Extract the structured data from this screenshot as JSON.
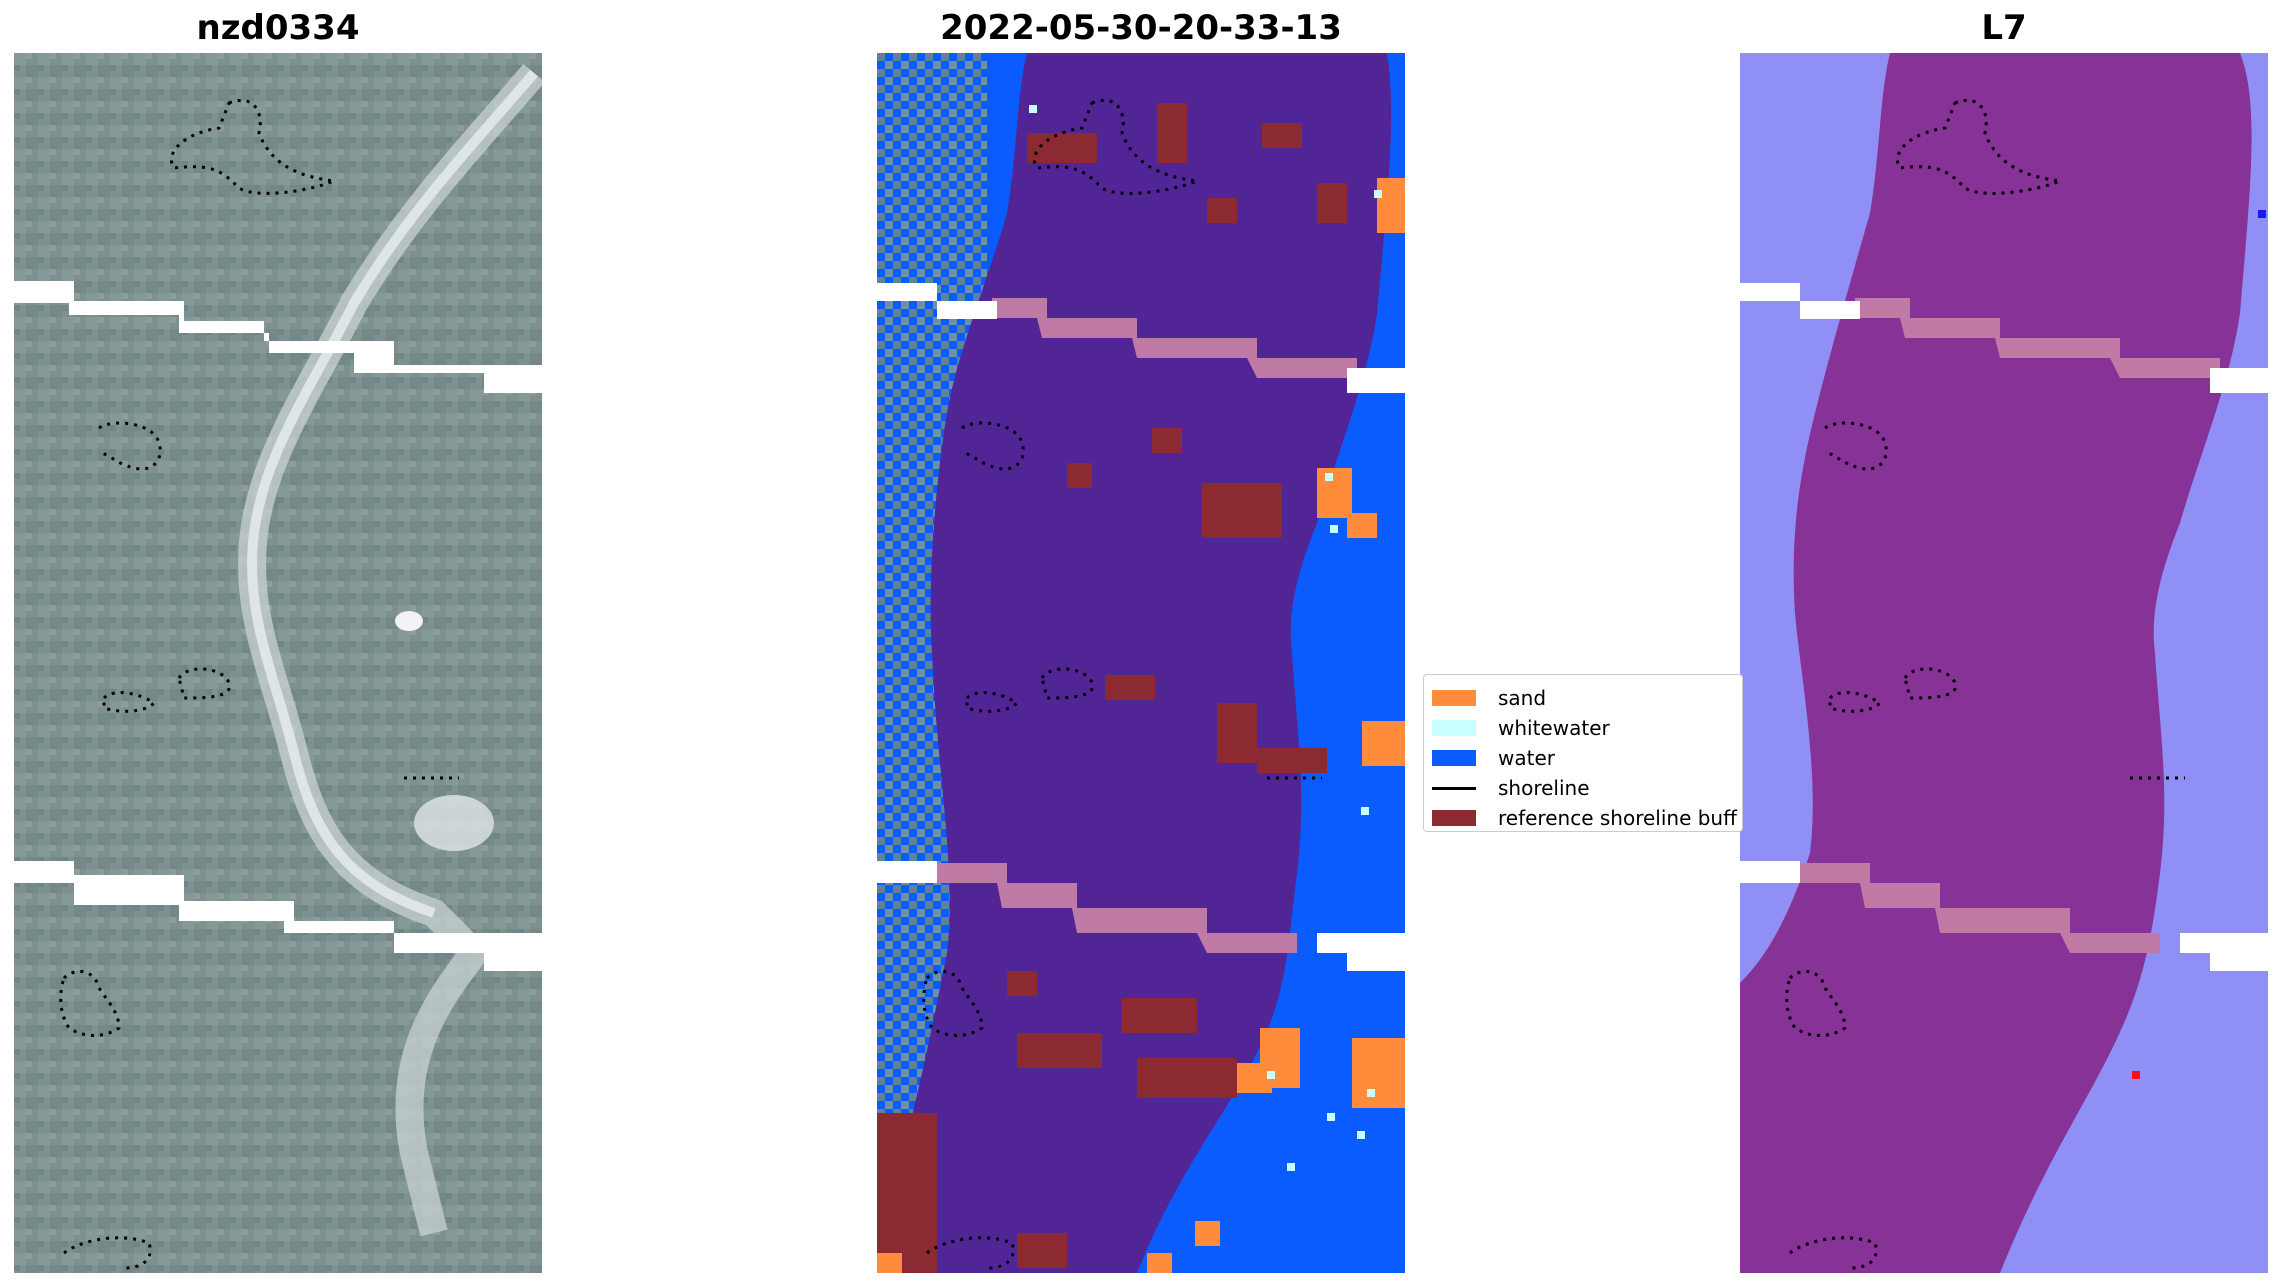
{
  "panels": [
    {
      "title": "nzd0334"
    },
    {
      "title": "2022-05-30-20-33-13"
    },
    {
      "title": "L7"
    }
  ],
  "legend": {
    "items": [
      {
        "label": "sand",
        "color": "#ff8c3a",
        "kind": "patch"
      },
      {
        "label": "whitewater",
        "color": "#c8ffff",
        "kind": "patch"
      },
      {
        "label": "water",
        "color": "#0a5cff",
        "kind": "patch"
      },
      {
        "label": "shoreline",
        "color": "#000000",
        "kind": "line"
      },
      {
        "label": "reference shoreline buff",
        "color": "#8b2a30",
        "kind": "patch"
      }
    ]
  },
  "colors": {
    "imagery_base": "#7f9190",
    "land_class": "#522596",
    "water_class": "#0a5cff",
    "reference_buffer": "#8b2a30",
    "l7_water": "#8f8ff5",
    "l7_land": "#863296",
    "nodata_band": "#ffffff",
    "overlap_band": "#c07aa6"
  }
}
